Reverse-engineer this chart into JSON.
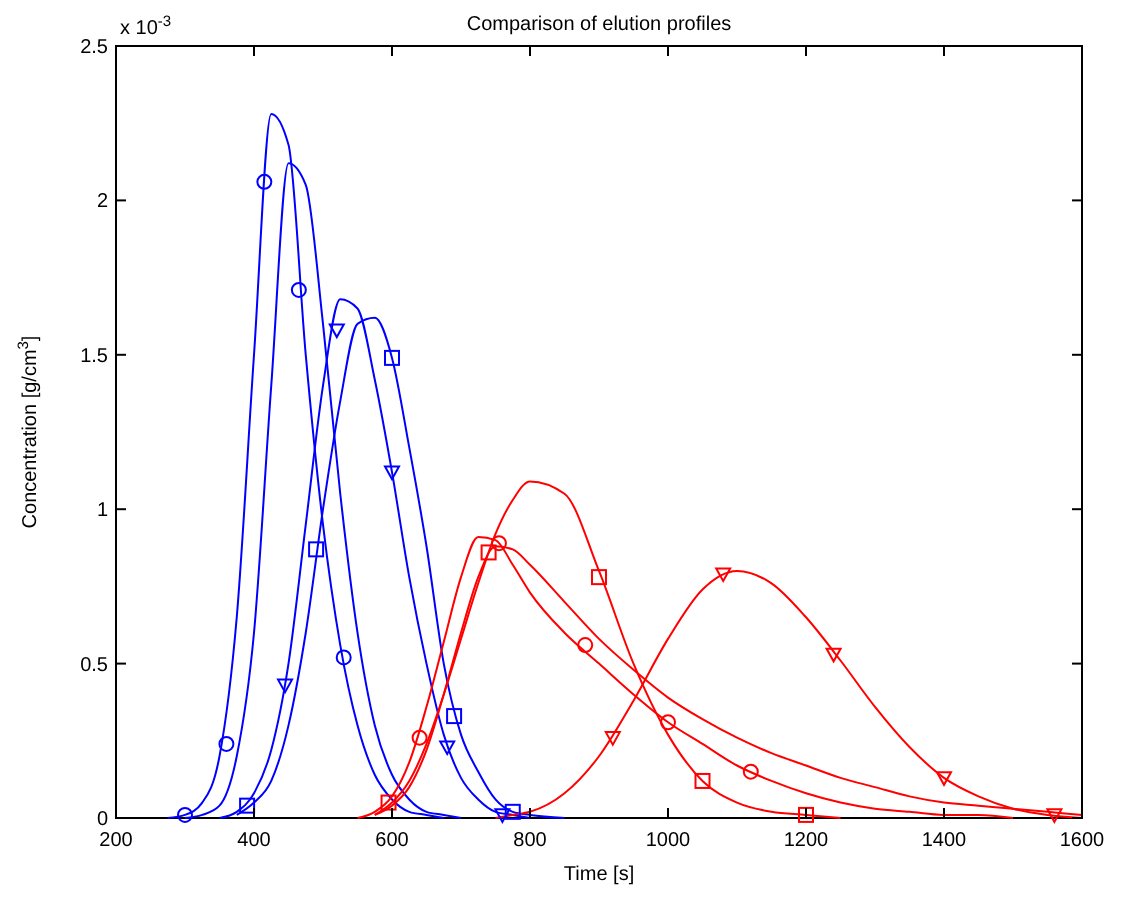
{
  "chart_data": {
    "type": "line",
    "title": "Comparison of elution profiles",
    "xlabel": "Time [s]",
    "ylabel": "Concentration [g/cm$^{3}$]",
    "annotations": [
      "x 10$^{-3}$"
    ],
    "x": [
      275,
      300,
      325,
      350,
      375,
      400,
      425,
      450,
      475,
      500,
      525,
      550,
      575,
      600,
      625,
      650,
      675,
      700,
      725,
      750,
      775,
      800,
      850,
      900,
      950,
      1000,
      1050,
      1100,
      1150,
      1200,
      1250,
      1300,
      1350,
      1400,
      1450,
      1500,
      1550,
      1600
    ],
    "xlim": [
      200,
      1600
    ],
    "xticks": [
      200,
      400,
      600,
      800,
      1000,
      1200,
      1400,
      1600
    ],
    "ylim": [
      0,
      2.5
    ],
    "yticks": [
      0,
      0.5,
      1,
      1.5,
      2,
      2.5
    ],
    "grid": false,
    "line_style": "solid",
    "series": [
      {
        "color": "#0000ff",
        "values": [
          0,
          0.01,
          0.05,
          0.2,
          0.65,
          1.5,
          2.28,
          2.18,
          1.5,
          0.95,
          0.56,
          0.3,
          0.14,
          0.06,
          0.02,
          0.01,
          0,
          null,
          null,
          null,
          null,
          null,
          null,
          null,
          null,
          null,
          null,
          null,
          null,
          null,
          null,
          null,
          null,
          null,
          null,
          null,
          null,
          null
        ]
      },
      {
        "color": "#0000ff",
        "values": [
          null,
          0,
          0.01,
          0.04,
          0.2,
          0.6,
          1.4,
          2.12,
          2.05,
          1.6,
          1.05,
          0.6,
          0.3,
          0.14,
          0.06,
          0.02,
          0.01,
          0,
          null,
          null,
          null,
          null,
          null,
          null,
          null,
          null,
          null,
          null,
          null,
          null,
          null,
          null,
          null,
          null,
          null,
          null,
          null,
          null
        ]
      },
      {
        "color": "#0000ff",
        "values": [
          null,
          null,
          null,
          0,
          0.02,
          0.08,
          0.22,
          0.5,
          0.95,
          1.4,
          1.68,
          1.65,
          1.42,
          1.12,
          0.78,
          0.5,
          0.27,
          0.13,
          0.06,
          0.02,
          0.01,
          0,
          null,
          null,
          null,
          null,
          null,
          null,
          null,
          null,
          null,
          null,
          null,
          null,
          null,
          null,
          null,
          null
        ]
      },
      {
        "color": "#0000ff",
        "values": [
          null,
          null,
          null,
          null,
          0.01,
          0.05,
          0.12,
          0.3,
          0.6,
          1.0,
          1.35,
          1.6,
          1.62,
          1.49,
          1.2,
          0.88,
          0.5,
          0.27,
          0.15,
          0.06,
          0.02,
          0.01,
          0,
          null,
          null,
          null,
          null,
          null,
          null,
          null,
          null,
          null,
          null,
          null,
          null,
          null,
          null,
          null
        ]
      },
      {
        "color": "#ff0000",
        "values": [
          null,
          null,
          null,
          null,
          null,
          null,
          null,
          null,
          null,
          null,
          null,
          0,
          0.02,
          0.07,
          0.18,
          0.36,
          0.57,
          0.78,
          0.91,
          0.9,
          0.82,
          0.73,
          0.6,
          0.5,
          0.4,
          0.31,
          0.24,
          0.17,
          0.12,
          0.08,
          0.05,
          0.03,
          0.02,
          0.01,
          0.01,
          0,
          null,
          null
        ]
      },
      {
        "color": "#ff0000",
        "values": [
          null,
          null,
          null,
          null,
          null,
          null,
          null,
          null,
          null,
          null,
          null,
          null,
          0.01,
          0.04,
          0.1,
          0.22,
          0.4,
          0.6,
          0.78,
          0.88,
          0.87,
          0.82,
          0.7,
          0.58,
          0.48,
          0.39,
          0.32,
          0.26,
          0.21,
          0.17,
          0.13,
          0.1,
          0.07,
          0.05,
          0.04,
          0.03,
          0.02,
          0.01
        ]
      },
      {
        "color": "#ff0000",
        "values": [
          null,
          null,
          null,
          null,
          null,
          null,
          null,
          null,
          null,
          null,
          null,
          null,
          0.01,
          0.05,
          0.12,
          0.24,
          0.4,
          0.58,
          0.76,
          0.92,
          1.03,
          1.09,
          1.05,
          0.8,
          0.5,
          0.27,
          0.12,
          0.05,
          0.02,
          0.01,
          0,
          null,
          null,
          null,
          null,
          null,
          null,
          null
        ]
      },
      {
        "color": "#ff0000",
        "values": [
          null,
          null,
          null,
          null,
          null,
          null,
          null,
          null,
          null,
          null,
          null,
          null,
          null,
          null,
          null,
          null,
          null,
          null,
          null,
          0,
          0.01,
          0.02,
          0.08,
          0.2,
          0.38,
          0.58,
          0.74,
          0.8,
          0.76,
          0.65,
          0.51,
          0.36,
          0.23,
          0.13,
          0.07,
          0.03,
          0.01,
          0
        ]
      },
      {
        "type": "scatter",
        "marker": "circle",
        "color": "#0000ff",
        "x": [
          300,
          360,
          415,
          465,
          530
        ],
        "values": [
          0.01,
          0.24,
          2.06,
          1.71,
          0.52
        ]
      },
      {
        "type": "scatter",
        "marker": "triangle",
        "color": "#0000ff",
        "x": [
          445,
          520,
          600,
          680,
          760
        ],
        "values": [
          0.43,
          1.58,
          1.12,
          0.23,
          0.01
        ]
      },
      {
        "type": "scatter",
        "marker": "square",
        "color": "#0000ff",
        "x": [
          390,
          490,
          600,
          690,
          775
        ],
        "values": [
          0.04,
          0.87,
          1.49,
          0.33,
          0.02
        ]
      },
      {
        "type": "scatter",
        "marker": "circle",
        "color": "#ff0000",
        "x": [
          640,
          755,
          880,
          1000,
          1120
        ],
        "values": [
          0.26,
          0.89,
          0.56,
          0.31,
          0.15
        ]
      },
      {
        "type": "scatter",
        "marker": "square",
        "color": "#ff0000",
        "x": [
          595,
          740,
          900,
          1050,
          1200
        ],
        "values": [
          0.05,
          0.86,
          0.78,
          0.12,
          0.01
        ]
      },
      {
        "type": "scatter",
        "marker": "triangle",
        "color": "#ff0000",
        "x": [
          920,
          1080,
          1240,
          1400,
          1560
        ],
        "values": [
          0.26,
          0.79,
          0.53,
          0.13,
          0.01
        ]
      }
    ]
  }
}
